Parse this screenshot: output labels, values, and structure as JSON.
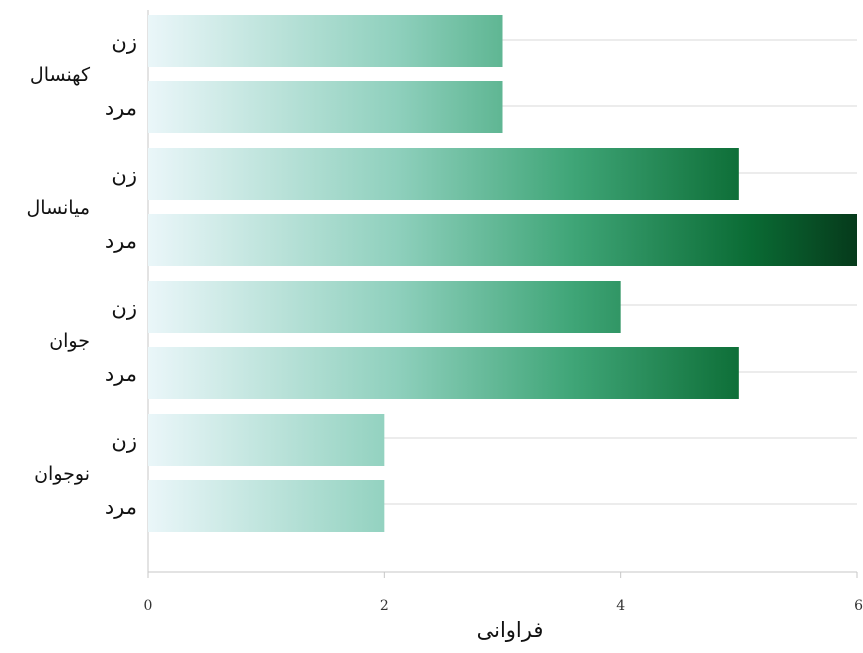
{
  "chart_data": {
    "type": "bar",
    "orientation": "horizontal",
    "title": "",
    "xlabel": "فراوانی",
    "ylabel": "",
    "xlim": [
      0,
      6
    ],
    "x_ticks": [
      "0",
      "2",
      "4",
      "6"
    ],
    "grid": true,
    "legend": "none",
    "color_scale": [
      "#eaf6f9",
      "#8fd0bd",
      "#3fa577",
      "#0a6b34",
      "#063a1b"
    ],
    "groups": [
      {
        "label": "کهنسال",
        "bars": [
          {
            "label": "زن",
            "value": 3
          },
          {
            "label": "مرد",
            "value": 3
          }
        ]
      },
      {
        "label": "میانسال",
        "bars": [
          {
            "label": "زن",
            "value": 5
          },
          {
            "label": "مرد",
            "value": 6
          }
        ]
      },
      {
        "label": "جوان",
        "bars": [
          {
            "label": "زن",
            "value": 4
          },
          {
            "label": "مرد",
            "value": 5
          }
        ]
      },
      {
        "label": "نوجوان",
        "bars": [
          {
            "label": "زن",
            "value": 2
          },
          {
            "label": "مرد",
            "value": 2
          }
        ]
      }
    ]
  }
}
